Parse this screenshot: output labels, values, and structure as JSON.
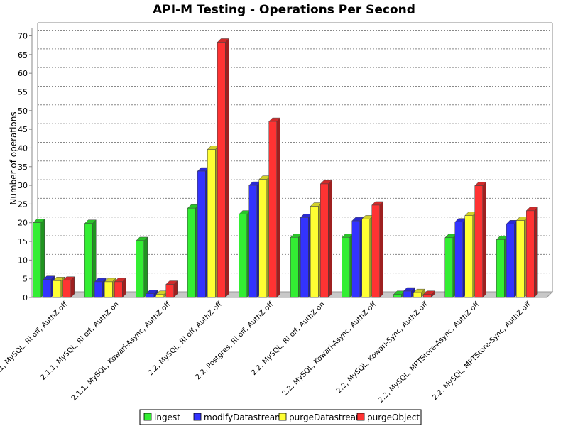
{
  "chart_data": {
    "type": "bar",
    "title": "API-M Testing - Operations Per Second",
    "xlabel": "",
    "ylabel": "Number of operations",
    "ylim": [
      0,
      72
    ],
    "yticks": [
      0,
      5,
      10,
      15,
      20,
      25,
      30,
      35,
      40,
      45,
      50,
      55,
      60,
      65,
      70
    ],
    "grid": true,
    "legend_position": "bottom",
    "categories": [
      "2.1.1, MySQL, RI off, AuthZ off",
      "2.1.1, MySQL, RI off, AuthZ on",
      "2.1.1, MySQL, Kowari-Async, AuthZ off",
      "2.2, MySQL, RI off, AuthZ off",
      "2.2, Postgres, RI off, AuthZ off",
      "2.2, MySQL, RI off, AuthZ on",
      "2.2, MySQL, Kowari-Async, AuthZ off",
      "2.2, MySQL, Kowari-Sync, AuthZ off",
      "2.2, MySQL, MPTStore-Async, AuthZ off",
      "2.2, MySQL, MPTStore-Sync, AuthZ off"
    ],
    "series": [
      {
        "name": "ingest",
        "color": "#33ee33",
        "values": [
          20.0,
          19.8,
          15.2,
          23.9,
          22.3,
          16.1,
          16.1,
          0.8,
          16.0,
          15.5
        ]
      },
      {
        "name": "modifyDatastream",
        "color": "#3333ff",
        "values": [
          4.8,
          4.2,
          1.0,
          33.8,
          30.0,
          21.4,
          20.5,
          1.7,
          20.2,
          19.7
        ]
      },
      {
        "name": "purgeDatastream",
        "color": "#ffff33",
        "values": [
          4.5,
          4.2,
          0.8,
          39.6,
          31.6,
          24.4,
          21.0,
          1.3,
          21.9,
          20.6
        ]
      },
      {
        "name": "purgeObject",
        "color": "#ff3333",
        "values": [
          4.6,
          4.2,
          3.5,
          68.3,
          47.1,
          30.4,
          24.7,
          0.8,
          29.9,
          23.2
        ]
      }
    ]
  }
}
